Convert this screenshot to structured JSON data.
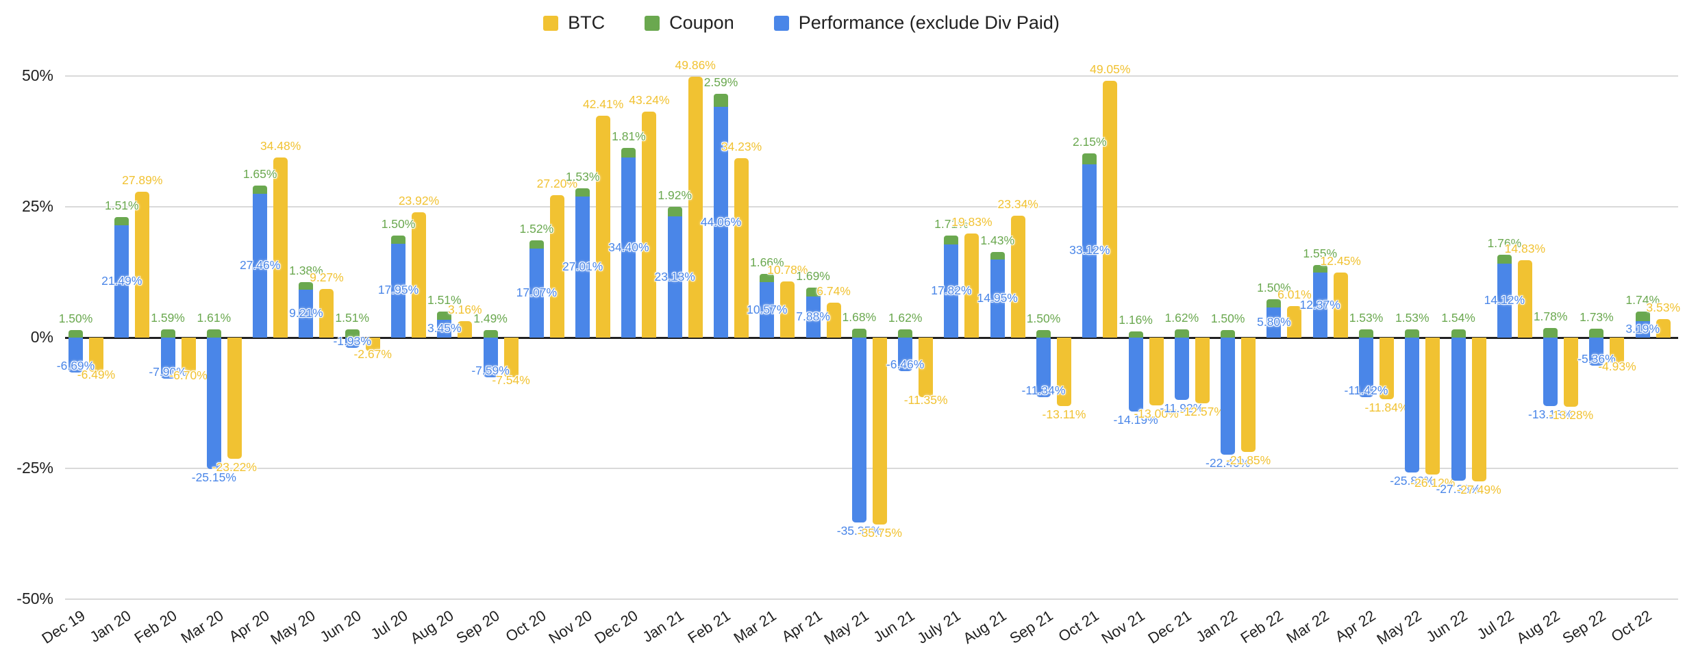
{
  "page": {
    "background": "#ffffff"
  },
  "legend": {
    "items": [
      {
        "label": "BTC",
        "color": "#F1C232"
      },
      {
        "label": "Coupon",
        "color": "#6AA84F"
      },
      {
        "label": "Performance (exclude Div Paid)",
        "color": "#4A86E8"
      }
    ]
  },
  "y_axis": {
    "ticks": [
      {
        "label": "50%",
        "value": 50
      },
      {
        "label": "25%",
        "value": 25
      },
      {
        "label": "0%",
        "value": 0
      },
      {
        "label": "-25%",
        "value": -25
      },
      {
        "label": "-50%",
        "value": -50
      }
    ]
  },
  "chart_data": {
    "type": "bar",
    "title": "",
    "structure": "Coupon stacked on top of Performance in one column; BTC as a separate adjacent column per month",
    "value_format": "percent, two decimals",
    "ylim": [
      -50,
      50
    ],
    "grid": true,
    "legend_position": "top",
    "categories": [
      "Dec 19",
      "Jan 20",
      "Feb 20",
      "Mar 20",
      "Apr 20",
      "May 20",
      "Jun 20",
      "Jul 20",
      "Aug 20",
      "Sep 20",
      "Oct 20",
      "Nov 20",
      "Dec 20",
      "Jan 21",
      "Feb 21",
      "Mar 21",
      "Apr 21",
      "May 21",
      "Jun 21",
      "July 21",
      "Aug 21",
      "Sep 21",
      "Oct 21",
      "Nov 21",
      "Dec 21",
      "Jan 22",
      "Feb 22",
      "Mar 22",
      "Apr 22",
      "May 22",
      "Jun 22",
      "Jul 22",
      "Aug 22",
      "Sep 22",
      "Oct 22"
    ],
    "series": [
      {
        "name": "BTC",
        "color": "#F1C232",
        "values": [
          -6.49,
          27.89,
          -6.7,
          -23.22,
          34.48,
          9.27,
          -2.67,
          23.92,
          3.16,
          -7.54,
          27.2,
          42.41,
          43.24,
          49.86,
          34.23,
          10.78,
          6.74,
          -35.75,
          -11.35,
          19.83,
          23.34,
          -13.11,
          49.05,
          -13.0,
          -12.57,
          -21.85,
          6.01,
          12.45,
          -11.84,
          -26.12,
          -27.49,
          14.83,
          -13.28,
          -4.93,
          3.53
        ]
      },
      {
        "name": "Coupon",
        "color": "#6AA84F",
        "values": [
          1.5,
          1.51,
          1.59,
          1.61,
          1.65,
          1.38,
          1.51,
          1.5,
          1.51,
          1.49,
          1.52,
          1.53,
          1.81,
          1.92,
          2.59,
          1.66,
          1.69,
          1.68,
          1.62,
          1.71,
          1.43,
          1.5,
          2.15,
          1.16,
          1.62,
          1.5,
          1.5,
          1.55,
          1.53,
          1.53,
          1.54,
          1.76,
          1.78,
          1.73,
          1.74
        ]
      },
      {
        "name": "Performance (exclude Div Paid)",
        "color": "#4A86E8",
        "values": [
          -6.69,
          21.49,
          -7.9,
          -25.15,
          27.46,
          9.21,
          -1.93,
          17.95,
          3.45,
          -7.59,
          17.07,
          27.01,
          34.4,
          23.13,
          44.06,
          10.57,
          7.88,
          -35.35,
          -6.46,
          17.82,
          14.95,
          -11.34,
          33.12,
          -14.19,
          -11.92,
          -22.4,
          5.8,
          12.37,
          -11.42,
          -25.83,
          -27.38,
          14.12,
          -13.13,
          -5.36,
          3.19
        ]
      }
    ]
  }
}
